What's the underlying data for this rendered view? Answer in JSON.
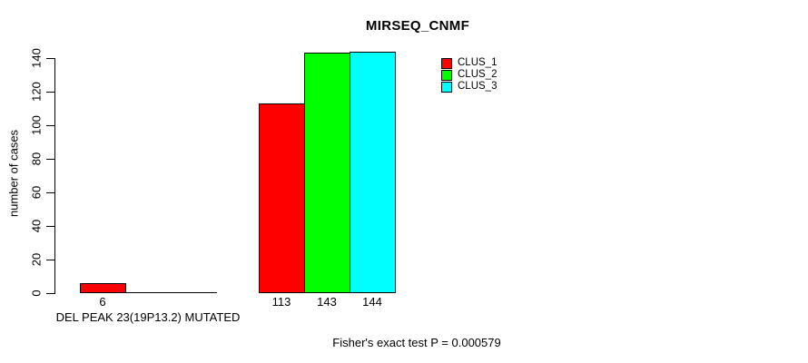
{
  "chart_data": {
    "type": "bar",
    "title": "MIRSEQ_CNMF",
    "ylabel": "number of cases",
    "xlabel": "",
    "ylim": [
      0,
      140
    ],
    "yticks": [
      0,
      20,
      40,
      60,
      80,
      100,
      120,
      140
    ],
    "grid": false,
    "legend_position": "top-right",
    "categories": [
      "DEL PEAK 23(19P13.2) MUTATED",
      ""
    ],
    "series": [
      {
        "name": "CLUS_1",
        "color": "#ff0000",
        "values": [
          6,
          113
        ]
      },
      {
        "name": "CLUS_2",
        "color": "#00ff00",
        "values": [
          0,
          143
        ]
      },
      {
        "name": "CLUS_3",
        "color": "#00ffff",
        "values": [
          0,
          144
        ]
      }
    ],
    "value_labels": [
      [
        "6",
        "",
        ""
      ],
      [
        "113",
        "143",
        "144"
      ]
    ],
    "annotation": "Fisher's exact test P = 0.000579"
  },
  "colors": {
    "background": "#ffffff",
    "axis": "#000000",
    "clus_1": "#ff0000",
    "clus_2": "#00ff00",
    "clus_3": "#00ffff"
  }
}
